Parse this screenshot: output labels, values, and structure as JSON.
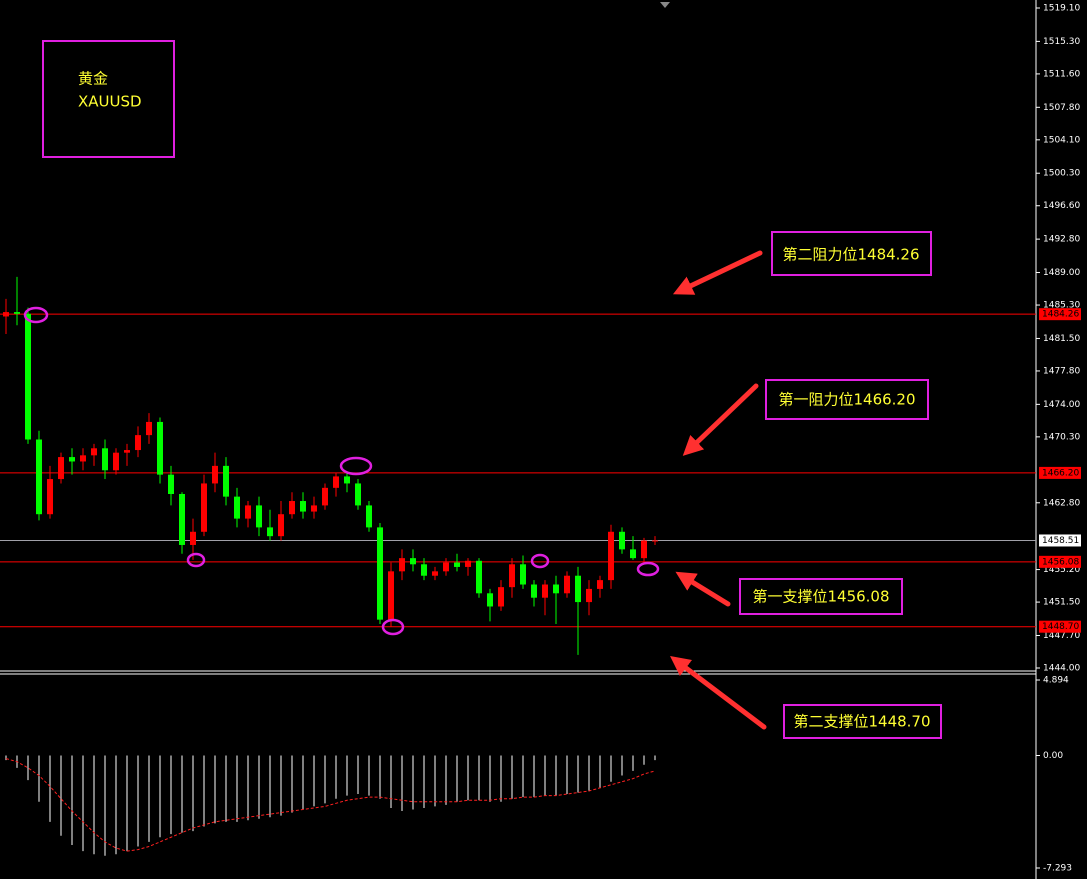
{
  "chart_data": {
    "type": "candlestick",
    "symbol_box": {
      "name": "黄金",
      "symbol": "XAUUSD"
    },
    "up_color": "#ff0000",
    "down_color": "#00ff00",
    "ylim": [
      1444.0,
      1519.1
    ],
    "yticks": [
      {
        "value": 1519.1,
        "label": "1519.10"
      },
      {
        "value": 1515.3,
        "label": "1515.30"
      },
      {
        "value": 1511.6,
        "label": "1511.60"
      },
      {
        "value": 1507.8,
        "label": "1507.80"
      },
      {
        "value": 1504.1,
        "label": "1504.10"
      },
      {
        "value": 1500.3,
        "label": "1500.30"
      },
      {
        "value": 1496.6,
        "label": "1496.60"
      },
      {
        "value": 1492.8,
        "label": "1492.80"
      },
      {
        "value": 1489.0,
        "label": "1489.00"
      },
      {
        "value": 1485.3,
        "label": "1485.30"
      },
      {
        "value": 1481.5,
        "label": "1481.50"
      },
      {
        "value": 1477.8,
        "label": "1477.80"
      },
      {
        "value": 1474.0,
        "label": "1474.00"
      },
      {
        "value": 1470.3,
        "label": "1470.30"
      },
      {
        "value": 1462.8,
        "label": "1462.80"
      },
      {
        "value": 1455.2,
        "label": "1455.20"
      },
      {
        "value": 1451.5,
        "label": "1451.50"
      },
      {
        "value": 1447.7,
        "label": "1447.70"
      },
      {
        "value": 1444.0,
        "label": "1444.00"
      }
    ],
    "open": [
      1484.0,
      1484.5,
      1484.3,
      1470,
      1461.5,
      1465.5,
      1468,
      1467.5,
      1468.2,
      1469,
      1466.5,
      1468.5,
      1468.8,
      1470.5,
      1472,
      1466,
      1463.8,
      1458,
      1459.5,
      1465,
      1467,
      1463.5,
      1461,
      1462.5,
      1460,
      1459,
      1461.5,
      1463,
      1461.8,
      1462.5,
      1464.5,
      1465.8,
      1465,
      1462.5,
      1460,
      1449.5,
      1455,
      1456.5,
      1455.8,
      1454.5,
      1455,
      1456,
      1455.5,
      1456.2,
      1452.5,
      1451,
      1453.2,
      1455.8,
      1453.5,
      1452,
      1453.5,
      1452.5,
      1454.5,
      1451.5,
      1453,
      1454,
      1459.5,
      1457.5,
      1456.5,
      1458.5
    ],
    "high": [
      1486,
      1488.5,
      1485,
      1471,
      1467,
      1468.5,
      1469,
      1469,
      1469.5,
      1470,
      1469,
      1469.5,
      1471.5,
      1473,
      1472.5,
      1467,
      1464,
      1461,
      1466,
      1468.5,
      1468,
      1464.5,
      1463,
      1463.5,
      1462,
      1463,
      1464,
      1464,
      1463.5,
      1465,
      1466.2,
      1466.2,
      1465.5,
      1463,
      1460.5,
      1456,
      1457.5,
      1457.5,
      1456.5,
      1455.5,
      1456.5,
      1457,
      1456.5,
      1456.5,
      1453,
      1454,
      1456.5,
      1456.8,
      1454,
      1454,
      1454.5,
      1455,
      1455.5,
      1454,
      1454.5,
      1460.3,
      1460,
      1459,
      1458.8,
      1459
    ],
    "low": [
      1482,
      1483,
      1469.5,
      1460.8,
      1461,
      1465,
      1466,
      1466.5,
      1467,
      1465.5,
      1466,
      1467,
      1468,
      1469.5,
      1465,
      1462.5,
      1457,
      1456.3,
      1459,
      1464,
      1462.5,
      1460,
      1460,
      1459,
      1458.5,
      1458.5,
      1461,
      1461,
      1461,
      1462,
      1463.5,
      1464,
      1462,
      1459.5,
      1449,
      1448.7,
      1454,
      1455,
      1454,
      1454,
      1454.5,
      1455,
      1454.5,
      1452,
      1449.3,
      1450.5,
      1452,
      1453,
      1451,
      1450,
      1449,
      1452,
      1445.5,
      1450,
      1452,
      1453,
      1457,
      1456.3,
      1456,
      1458
    ],
    "close": [
      1484.5,
      1484.3,
      1470,
      1461.5,
      1465.5,
      1468,
      1467.5,
      1468.2,
      1469,
      1466.5,
      1468.5,
      1468.8,
      1470.5,
      1472,
      1466,
      1463.8,
      1458,
      1459.5,
      1465,
      1467,
      1463.5,
      1461,
      1462.5,
      1460,
      1459,
      1461.5,
      1463,
      1461.8,
      1462.5,
      1464.5,
      1465.8,
      1465,
      1462.5,
      1460,
      1449.5,
      1455,
      1456.5,
      1455.8,
      1454.5,
      1455,
      1456,
      1455.5,
      1456.2,
      1452.5,
      1451,
      1453.2,
      1455.8,
      1453.5,
      1452,
      1453.5,
      1452.5,
      1454.5,
      1451.5,
      1453,
      1454,
      1459.5,
      1457.5,
      1456.5,
      1458.5,
      1458.51
    ],
    "levels": [
      {
        "value": 1484.26,
        "label": "1484.26",
        "color": "#ff0000"
      },
      {
        "value": 1466.2,
        "label": "1466.20",
        "color": "#ff0000"
      },
      {
        "value": 1458.51,
        "label": "1458.51",
        "color": "#a0a0a8"
      },
      {
        "value": 1456.08,
        "label": "1456.08",
        "color": "#ff0000"
      },
      {
        "value": 1448.7,
        "label": "1448.70",
        "color": "#ff0000"
      }
    ],
    "annotations": [
      {
        "text": "第二阻力位1484.26"
      },
      {
        "text": "第一阻力位1466.20"
      },
      {
        "text": "第一支撑位1456.08"
      },
      {
        "text": "第二支撑位1448.70"
      }
    ],
    "indicator": {
      "type": "histogram",
      "ylim": [
        -7.293,
        4.894
      ],
      "yticks": [
        4.894,
        {
          "value": 0,
          "label": "0.00"
        },
        -7.293
      ],
      "color": "#ffffff",
      "signal_color": "#ff2020",
      "histogram": [
        -0.3,
        -0.8,
        -1.6,
        -3.0,
        -4.3,
        -5.2,
        -5.8,
        -6.2,
        -6.4,
        -6.5,
        -6.4,
        -6.2,
        -5.9,
        -5.6,
        -5.3,
        -5.1,
        -5.0,
        -4.9,
        -4.6,
        -4.4,
        -4.3,
        -4.3,
        -4.2,
        -4.1,
        -4.0,
        -3.9,
        -3.7,
        -3.5,
        -3.3,
        -3.1,
        -2.8,
        -2.6,
        -2.5,
        -2.6,
        -2.8,
        -3.4,
        -3.6,
        -3.5,
        -3.4,
        -3.3,
        -3.2,
        -3.0,
        -2.9,
        -2.9,
        -3.0,
        -3.0,
        -2.8,
        -2.7,
        -2.7,
        -2.6,
        -2.6,
        -2.5,
        -2.4,
        -2.3,
        -2.1,
        -1.7,
        -1.3,
        -1.0,
        -0.6,
        -0.3
      ],
      "signal": [
        -0.2,
        -0.4,
        -0.8,
        -1.3,
        -2.0,
        -2.8,
        -3.6,
        -4.3,
        -5.0,
        -5.6,
        -6.0,
        -6.2,
        -6.1,
        -5.9,
        -5.6,
        -5.3,
        -5.0,
        -4.7,
        -4.5,
        -4.3,
        -4.2,
        -4.1,
        -4.0,
        -3.9,
        -3.8,
        -3.7,
        -3.6,
        -3.5,
        -3.4,
        -3.3,
        -3.1,
        -2.9,
        -2.8,
        -2.7,
        -2.7,
        -2.8,
        -2.9,
        -3.0,
        -3.0,
        -3.0,
        -3.0,
        -3.0,
        -2.9,
        -2.9,
        -2.9,
        -2.8,
        -2.8,
        -2.7,
        -2.7,
        -2.6,
        -2.6,
        -2.5,
        -2.4,
        -2.3,
        -2.1,
        -1.9,
        -1.7,
        -1.5,
        -1.2,
        -1.0
      ]
    }
  }
}
